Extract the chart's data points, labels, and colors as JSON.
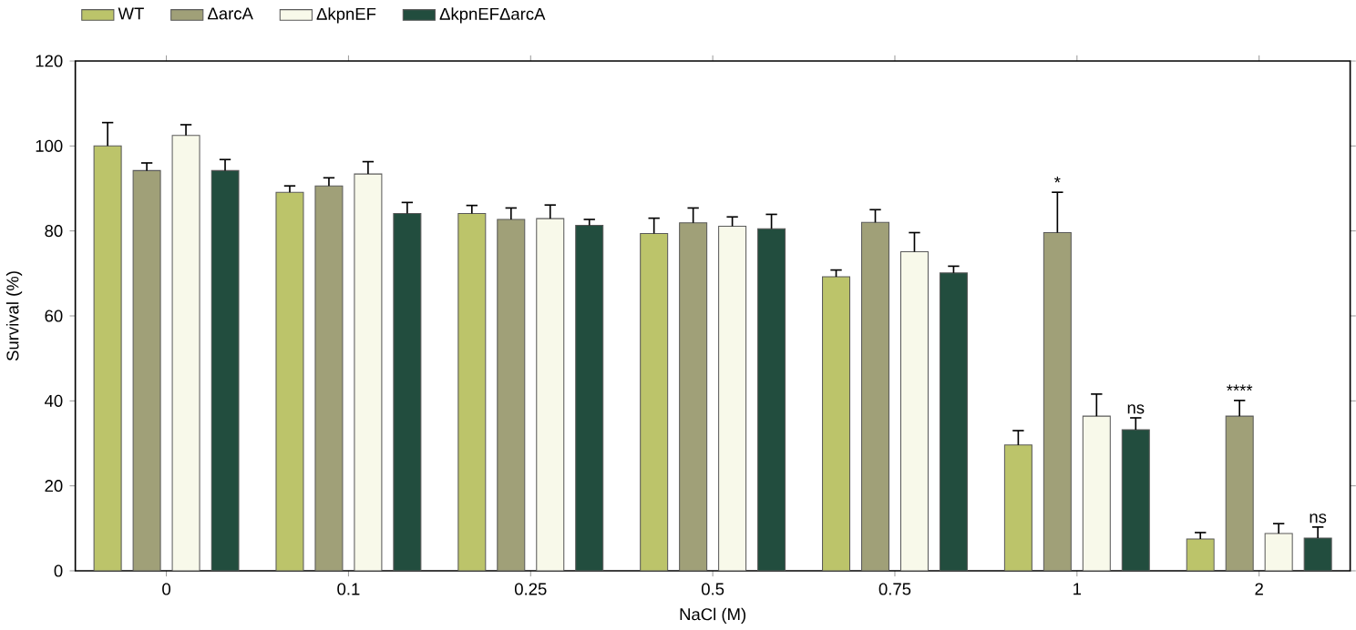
{
  "chart_data": {
    "type": "bar",
    "xlabel": "NaCl (M)",
    "ylabel": "Survival (%)",
    "categories": [
      "0",
      "0.1",
      "0.25",
      "0.5",
      "0.75",
      "1",
      "2"
    ],
    "series": [
      {
        "name": "WT",
        "color": "#bcc46a",
        "values": [
          100,
          89.1,
          84.1,
          79.4,
          69.2,
          29.6,
          7.5
        ],
        "errors": [
          [
            100,
            105.5
          ],
          [
            89.1,
            90.6
          ],
          [
            84.1,
            86
          ],
          [
            79.4,
            83
          ],
          [
            69.2,
            70.8
          ],
          [
            29.6,
            33
          ],
          [
            7.5,
            9
          ]
        ]
      },
      {
        "name": "ΔarcA",
        "color": "#a0a078",
        "values": [
          94.2,
          90.6,
          82.7,
          81.9,
          82,
          79.6,
          36.4
        ],
        "errors": [
          [
            94.2,
            96
          ],
          [
            90.6,
            92.5
          ],
          [
            82.7,
            85.4
          ],
          [
            81.9,
            85.4
          ],
          [
            82,
            85
          ],
          [
            79.6,
            89.1
          ],
          [
            36.4,
            40.1
          ]
        ]
      },
      {
        "name": "ΔkpnEF",
        "color": "#f8f9ea",
        "values": [
          102.5,
          93.4,
          82.9,
          81.1,
          75.1,
          36.4,
          8.8
        ],
        "errors": [
          [
            102.5,
            105
          ],
          [
            93.4,
            96.3
          ],
          [
            82.9,
            86.1
          ],
          [
            81.1,
            83.3
          ],
          [
            75.1,
            79.6
          ],
          [
            36.4,
            41.6
          ],
          [
            8.8,
            11.1
          ]
        ]
      },
      {
        "name": "ΔkpnEFΔarcA",
        "color": "#224d3e",
        "values": [
          94.2,
          84.1,
          81.3,
          80.5,
          70.1,
          33.2,
          7.7
        ],
        "errors": [
          [
            94.2,
            96.8
          ],
          [
            84.1,
            86.7
          ],
          [
            81.3,
            82.7
          ],
          [
            80.5,
            83.9
          ],
          [
            70.1,
            71.7
          ],
          [
            33.2,
            36
          ],
          [
            7.7,
            10.3
          ]
        ]
      }
    ],
    "ylim": [
      0,
      120
    ],
    "yticks": [
      0,
      20,
      40,
      60,
      80,
      100,
      120
    ],
    "legend": "top",
    "annotations": [
      "*",
      "****",
      "ns",
      "ns"
    ]
  }
}
